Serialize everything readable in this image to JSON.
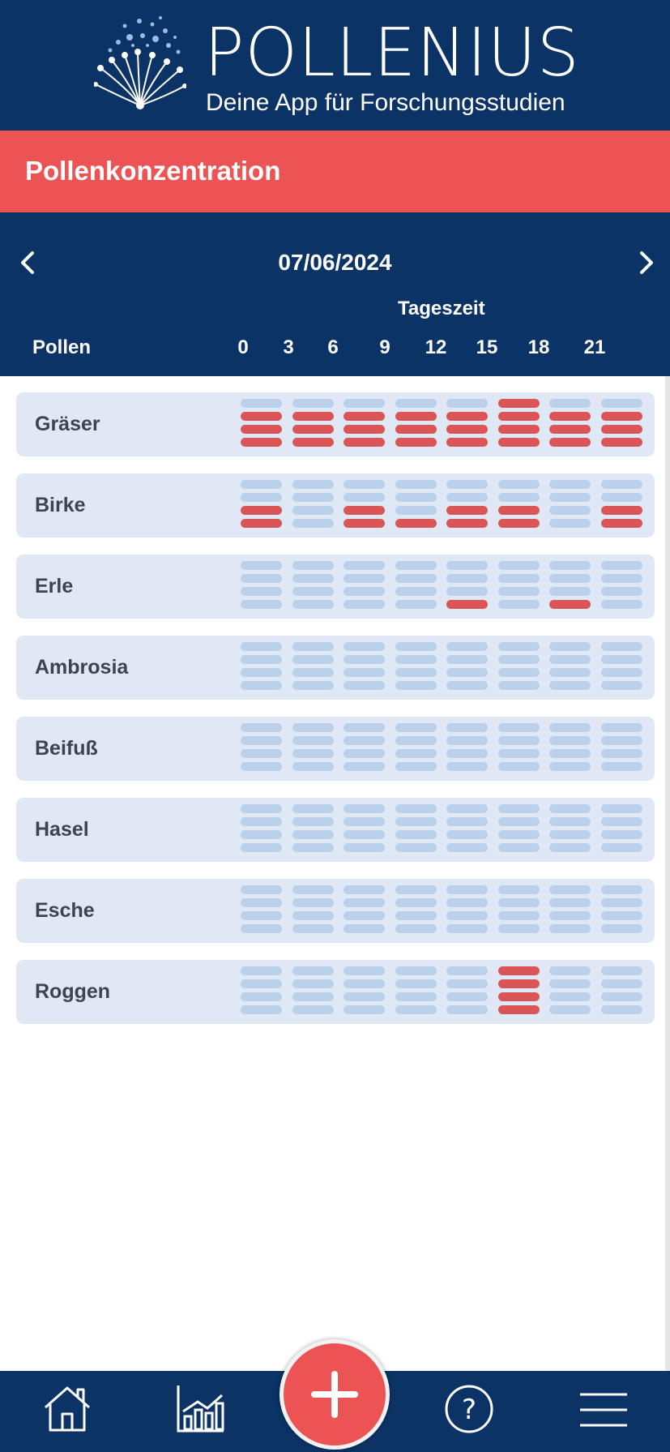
{
  "brand": {
    "name": "POLLENIUS",
    "tagline": "Deine App für Forschungsstudien"
  },
  "section": {
    "title": "Pollenkonzentration"
  },
  "nav": {
    "date": "07/06/2024",
    "prev_icon": "chevron-left-icon",
    "next_icon": "chevron-right-icon"
  },
  "table": {
    "time_label": "Tageszeit",
    "pollen_label": "Pollen",
    "hours": [
      "0",
      "3",
      "6",
      "9",
      "12",
      "15",
      "18",
      "21"
    ],
    "max_level": 4,
    "rows": [
      {
        "name": "Gräser",
        "levels": [
          3,
          3,
          3,
          3,
          3,
          4,
          3,
          3
        ]
      },
      {
        "name": "Birke",
        "levels": [
          2,
          0,
          2,
          1,
          2,
          2,
          0,
          2
        ]
      },
      {
        "name": "Erle",
        "levels": [
          0,
          0,
          0,
          0,
          1,
          0,
          1,
          0
        ]
      },
      {
        "name": "Ambrosia",
        "levels": [
          0,
          0,
          0,
          0,
          0,
          0,
          0,
          0
        ]
      },
      {
        "name": "Beifuß",
        "levels": [
          0,
          0,
          0,
          0,
          0,
          0,
          0,
          0
        ]
      },
      {
        "name": "Hasel",
        "levels": [
          0,
          0,
          0,
          0,
          0,
          0,
          0,
          0
        ]
      },
      {
        "name": "Esche",
        "levels": [
          0,
          0,
          0,
          0,
          0,
          0,
          0,
          0
        ]
      },
      {
        "name": "Roggen",
        "levels": [
          0,
          0,
          0,
          0,
          0,
          4,
          0,
          0
        ]
      }
    ]
  },
  "colors": {
    "navy": "#0b3366",
    "accent": "#ec5354",
    "bar_active": "#d95556",
    "bar_inactive": "#b9d1ea",
    "row_bg": "#dfe8f4"
  },
  "bottom_nav": {
    "items": [
      "home-icon",
      "statistics-icon",
      "add-entry-icon",
      "help-icon",
      "menu-icon"
    ]
  }
}
